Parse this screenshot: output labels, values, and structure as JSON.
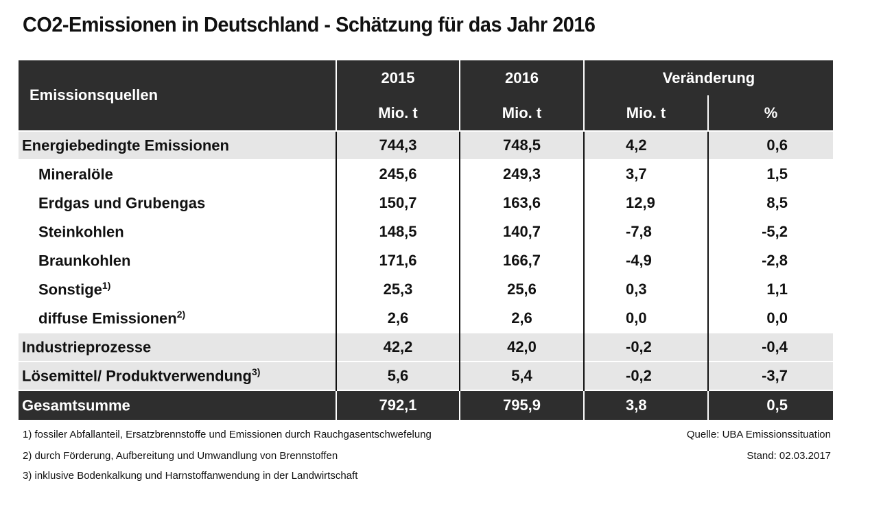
{
  "title": "CO2-Emissionen in Deutschland - Schätzung für das Jahr 2016",
  "header": {
    "source_label": "Emissionsquellen",
    "year1": "2015",
    "year2": "2016",
    "change": "Veränderung",
    "unit": "Mio. t",
    "percent": "%"
  },
  "rows": [
    {
      "label": "Energiebedingte Emissionen",
      "sup": "",
      "v2015": "744,3",
      "v2016": "748,5",
      "diff": "4,2",
      "pct": "0,6"
    },
    {
      "label": "Mineralöle",
      "sup": "",
      "v2015": "245,6",
      "v2016": "249,3",
      "diff": "3,7",
      "pct": "1,5"
    },
    {
      "label": "Erdgas und Grubengas",
      "sup": "",
      "v2015": "150,7",
      "v2016": "163,6",
      "diff": "12,9",
      "pct": "8,5"
    },
    {
      "label": "Steinkohlen",
      "sup": "",
      "v2015": "148,5",
      "v2016": "140,7",
      "diff": "-7,8",
      "pct": "-5,2"
    },
    {
      "label": "Braunkohlen",
      "sup": "",
      "v2015": "171,6",
      "v2016": "166,7",
      "diff": "-4,9",
      "pct": "-2,8"
    },
    {
      "label": "Sonstige",
      "sup": "1)",
      "v2015": "25,3",
      "v2016": "25,6",
      "diff": "0,3",
      "pct": "1,1"
    },
    {
      "label": "diffuse Emissionen",
      "sup": "2)",
      "v2015": "2,6",
      "v2016": "2,6",
      "diff": "0,0",
      "pct": "0,0"
    },
    {
      "label": "Industrieprozesse",
      "sup": "",
      "v2015": "42,2",
      "v2016": "42,0",
      "diff": "-0,2",
      "pct": "-0,4"
    },
    {
      "label": "Lösemittel/ Produktverwendung",
      "sup": "3)",
      "v2015": "5,6",
      "v2016": "5,4",
      "diff": "-0,2",
      "pct": "-3,7"
    },
    {
      "label": "Gesamtsumme",
      "sup": "",
      "v2015": "792,1",
      "v2016": "795,9",
      "diff": "3,8",
      "pct": "0,5"
    }
  ],
  "footnotes": [
    "1)  fossiler Abfallanteil, Ersatzbrennstoffe und Emissionen durch Rauchgasentschwefelung",
    "2)  durch Förderung, Aufbereitung und Umwandlung von Brennstoffen",
    "3)  inklusive Bodenkalkung und Harnstoffanwendung in der Landwirtschaft"
  ],
  "source": "Quelle: UBA Emissionssituation",
  "date": "Stand: 02.03.2017",
  "colors": {
    "header_bg": "#2e2e2e",
    "highlight_row": "#e6e6e6"
  }
}
